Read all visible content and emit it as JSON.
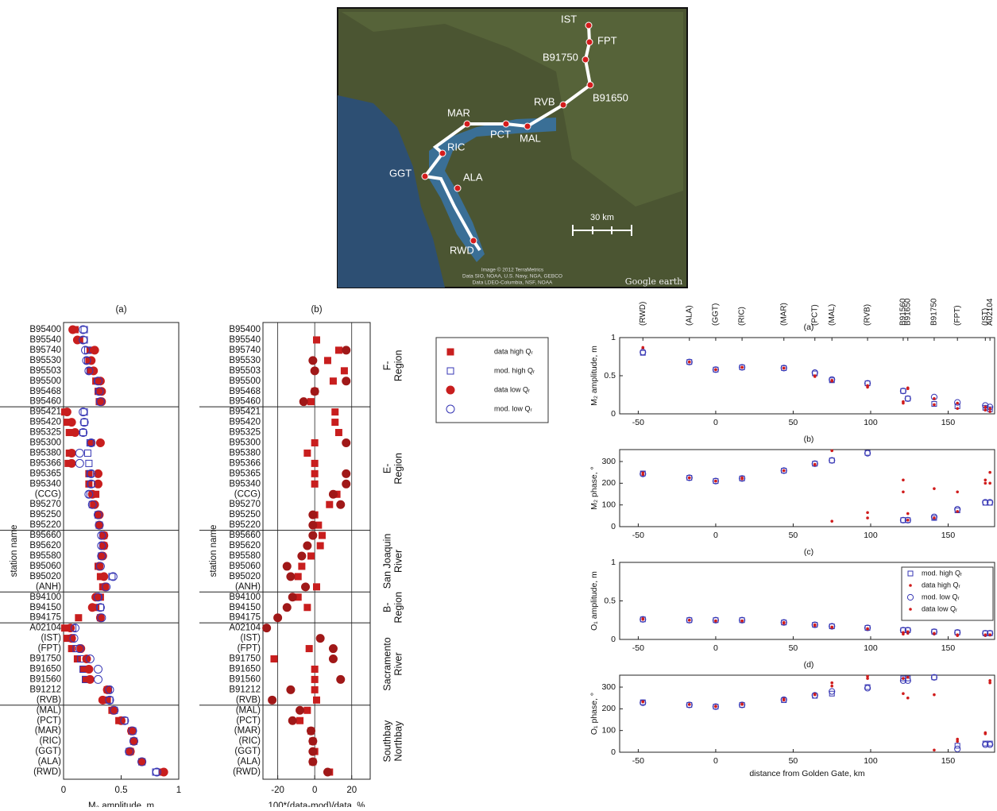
{
  "map": {
    "stations": [
      "IST",
      "FPT",
      "B91750",
      "B91650",
      "RVB",
      "MAR",
      "PCT",
      "MAL",
      "RIC",
      "GGT",
      "ALA",
      "RWD"
    ],
    "scale_label": "30 km",
    "attribution": [
      "Image © 2012 TerraMetrics",
      "Data SIO, NOAA, U.S. Navy, NGA, GEBCO",
      "Data LDEO-Columbia, NSF, NOAA"
    ],
    "logo": "Google earth"
  },
  "chart_data": [
    {
      "type": "dot",
      "title": "(a)",
      "xlabel": "M₂ amplitude, m",
      "ylabel": "station name",
      "categories": [
        "B95400",
        "B95540",
        "B95740",
        "B95530",
        "B95503",
        "B95500",
        "B95468",
        "B95460",
        "B95421",
        "B95420",
        "B95325",
        "B95300",
        "B95380",
        "B95366",
        "B95365",
        "B95340",
        "(CCG)",
        "B95270",
        "B95250",
        "B95220",
        "B95660",
        "B95620",
        "B95580",
        "B95060",
        "B95020",
        "(ANH)",
        "B94100",
        "B94150",
        "B94175",
        "A02104",
        "(IST)",
        "(FPT)",
        "B91750",
        "B91650",
        "B91560",
        "B91212",
        "(RVB)",
        "(MAL)",
        "(PCT)",
        "(MAR)",
        "(RIC)",
        "(GGT)",
        "(ALA)",
        "(RWD)"
      ],
      "xlim": [
        0,
        1
      ],
      "xticks": [
        0,
        0.5,
        1
      ],
      "series": [
        {
          "name": "data high Qᵣ",
          "marker": "square",
          "filled": true,
          "color": "#c81e1e",
          "values": [
            0.1,
            0.14,
            0.23,
            0.22,
            0.23,
            0.28,
            0.3,
            0.31,
            0.01,
            0.03,
            0.05,
            0.24,
            0.05,
            0.04,
            0.22,
            0.22,
            0.28,
            0.26,
            0.3,
            0.31,
            0.35,
            0.35,
            0.33,
            0.3,
            0.32,
            0.34,
            0.32,
            0.28,
            0.13,
            0.01,
            0.03,
            0.07,
            0.12,
            0.17,
            0.19,
            0.38,
            0.38,
            0.42,
            0.48,
            0.59,
            0.61,
            0.58,
            0.68,
            0.86
          ]
        },
        {
          "name": "mod. high Qᵣ",
          "marker": "square",
          "filled": false,
          "color": "#3636b4",
          "values": [
            0.18,
            0.18,
            0.21,
            0.21,
            0.23,
            0.3,
            0.31,
            0.32,
            0.18,
            0.18,
            0.17,
            0.23,
            0.21,
            0.22,
            0.23,
            0.24,
            0.23,
            0.25,
            0.3,
            0.31,
            0.34,
            0.34,
            0.33,
            0.31,
            0.42,
            0.36,
            0.3,
            0.32,
            0.32,
            0.08,
            0.07,
            0.11,
            0.15,
            0.17,
            0.19,
            0.39,
            0.4,
            0.44,
            0.53,
            0.6,
            0.61,
            0.57,
            0.68,
            0.8
          ]
        },
        {
          "name": "data low Qᵣ",
          "marker": "circle",
          "filled": true,
          "color": "#c81e1e",
          "values": [
            0.08,
            0.12,
            0.27,
            0.24,
            0.26,
            0.32,
            0.33,
            0.33,
            0.03,
            0.07,
            0.1,
            0.32,
            0.07,
            0.07,
            0.3,
            0.3,
            0.25,
            0.27,
            0.31,
            0.31,
            0.35,
            0.35,
            0.34,
            0.31,
            0.35,
            0.36,
            0.28,
            0.25,
            0.32,
            0.06,
            0.07,
            0.15,
            0.2,
            0.22,
            0.23,
            0.38,
            0.34,
            0.43,
            0.5,
            0.59,
            0.61,
            0.58,
            0.68,
            0.87
          ]
        },
        {
          "name": "mod. low Qᵣ",
          "marker": "circle",
          "filled": false,
          "color": "#3636b4",
          "values": [
            0.17,
            0.17,
            0.19,
            0.2,
            0.22,
            0.3,
            0.31,
            0.32,
            0.17,
            0.18,
            0.17,
            0.24,
            0.14,
            0.14,
            0.24,
            0.24,
            0.22,
            0.25,
            0.3,
            0.31,
            0.33,
            0.33,
            0.33,
            0.32,
            0.43,
            0.37,
            0.3,
            0.32,
            0.33,
            0.1,
            0.09,
            0.14,
            0.23,
            0.3,
            0.3,
            0.4,
            0.4,
            0.44,
            0.53,
            0.6,
            0.61,
            0.57,
            0.68,
            0.81
          ]
        }
      ]
    },
    {
      "type": "dot",
      "title": "(b)",
      "xlabel": "100*(data-mod)/data, %",
      "ylabel": "station name",
      "groups": [
        {
          "label": [
            "F-",
            "Region"
          ],
          "categories": [
            "B95400",
            "B95540",
            "B95740",
            "B95530",
            "B95503",
            "B95500",
            "B95468",
            "B95460"
          ]
        },
        {
          "label": [
            "E-",
            "Region"
          ],
          "categories": [
            "B95421",
            "B95420",
            "B95325",
            "B95300",
            "B95380",
            "B95366",
            "B95365",
            "B95340",
            "(CCG)",
            "B95270",
            "B95250",
            "B95220"
          ]
        },
        {
          "label": [
            "San Joaquin",
            "River"
          ],
          "categories": [
            "B95660",
            "B95620",
            "B95580",
            "B95060",
            "B95020",
            "(ANH)"
          ]
        },
        {
          "label": [
            "B-",
            "Region"
          ],
          "categories": [
            "B94100",
            "B94150",
            "B94175"
          ]
        },
        {
          "label": [
            "Sacramento",
            "River"
          ],
          "categories": [
            "A02104",
            "(IST)",
            "(FPT)",
            "B91750",
            "B91650",
            "B91560",
            "B91212",
            "(RVB)"
          ]
        },
        {
          "label": [
            "Southbay",
            "Northbay"
          ],
          "categories": [
            "(MAL)",
            "(PCT)",
            "(MAR)",
            "(RIC)",
            "(GGT)",
            "(ALA)",
            "(RWD)"
          ]
        }
      ],
      "xlim": [
        -28,
        30
      ],
      "xticks": [
        -20,
        0,
        20
      ],
      "grid": true,
      "series": [
        {
          "marker": "square",
          "filled": true,
          "color": "#c81e1e",
          "values": [
            null,
            1,
            13,
            7,
            16,
            10,
            0,
            -2,
            11,
            11,
            13,
            0,
            -4,
            0,
            0,
            0,
            12,
            8,
            0,
            2,
            4,
            3,
            -2,
            -7,
            -9,
            1,
            -9,
            -4,
            null,
            null,
            null,
            -3,
            -22,
            0,
            0,
            0,
            1,
            -4,
            -8,
            -2,
            -1,
            0,
            -1,
            8
          ]
        },
        {
          "marker": "circle",
          "filled": true,
          "color": "#a01818",
          "values": [
            null,
            null,
            17,
            -1,
            0,
            17,
            0,
            -6,
            null,
            null,
            null,
            17,
            null,
            null,
            17,
            17,
            10,
            14,
            -1,
            -1,
            -1,
            -4,
            -7,
            -15,
            -13,
            -5,
            -12,
            -15,
            -20,
            -26,
            3,
            10,
            10,
            null,
            14,
            -13,
            -23,
            -8,
            -12,
            -2,
            -1,
            -1,
            -1,
            7
          ]
        }
      ]
    },
    {
      "type": "scatter",
      "title": "(a)",
      "ylabel": "M₂ amplitude, m",
      "x": [
        -47,
        -17,
        0,
        17,
        44,
        64,
        75,
        98,
        121,
        124,
        141,
        156,
        174,
        177
      ],
      "xlim": [
        -62,
        180
      ],
      "xticks": [
        -50,
        0,
        50,
        100,
        150
      ],
      "ylim": [
        0,
        1
      ],
      "yticks": [
        0,
        0.5,
        1
      ],
      "x2ticks": [
        {
          "value": -47,
          "label": "(RWD)"
        },
        {
          "value": -17,
          "label": "(ALA)"
        },
        {
          "value": 0,
          "label": "(GGT)"
        },
        {
          "value": 17,
          "label": "(RIC)"
        },
        {
          "value": 44,
          "label": "(MAR)"
        },
        {
          "value": 64,
          "label": "(PCT)"
        },
        {
          "value": 75,
          "label": "(MAL)"
        },
        {
          "value": 98,
          "label": "(RVB)"
        },
        {
          "value": 121,
          "label": "B91560"
        },
        {
          "value": 124,
          "label": "B91650"
        },
        {
          "value": 141,
          "label": "B91750"
        },
        {
          "value": 156,
          "label": "(FPT)"
        },
        {
          "value": 174,
          "label": "(IST)"
        },
        {
          "value": 177,
          "label": "A02104"
        }
      ],
      "series": [
        {
          "marker": "square",
          "filled": false,
          "color": "#3636b4",
          "values": [
            0.8,
            0.68,
            0.58,
            0.61,
            0.6,
            0.53,
            0.44,
            0.4,
            0.3,
            0.2,
            0.13,
            0.1,
            0.08,
            0.06
          ]
        },
        {
          "marker": "dot",
          "filled": true,
          "color": "#d01c1c",
          "values": [
            0.86,
            0.68,
            0.58,
            0.61,
            0.6,
            0.49,
            0.44,
            0.35,
            0.16,
            0.34,
            0.12,
            0.07,
            0.05,
            0.03
          ]
        },
        {
          "marker": "circle",
          "filled": false,
          "color": "#3636b4",
          "values": [
            0.81,
            0.68,
            0.58,
            0.61,
            0.6,
            0.54,
            0.45,
            0.4,
            0.3,
            0.2,
            0.22,
            0.15,
            0.11,
            0.09
          ]
        },
        {
          "marker": "dot",
          "filled": true,
          "color": "#d01c1c",
          "values": [
            0.87,
            0.68,
            0.58,
            0.61,
            0.6,
            0.5,
            0.43,
            0.37,
            0.14,
            0.33,
            0.2,
            0.14,
            0.09,
            0.07
          ]
        }
      ]
    },
    {
      "type": "scatter",
      "title": "(b)",
      "ylabel": "M₂ phase, °",
      "x": [
        -47,
        -17,
        0,
        17,
        44,
        64,
        75,
        98,
        121,
        124,
        141,
        156,
        174,
        177
      ],
      "xlim": [
        -62,
        180
      ],
      "xticks": [
        -50,
        0,
        50,
        100,
        150
      ],
      "ylim": [
        0,
        355
      ],
      "yticks": [
        0,
        100,
        200,
        300
      ],
      "series": [
        {
          "marker": "square",
          "filled": false,
          "color": "#3636b4",
          "values": [
            245,
            225,
            210,
            222,
            258,
            290,
            305,
            340,
            30,
            30,
            40,
            75,
            110,
            110
          ]
        },
        {
          "marker": "dot",
          "filled": true,
          "color": "#d01c1c",
          "values": [
            250,
            225,
            210,
            225,
            258,
            287,
            350,
            65,
            215,
            60,
            175,
            160,
            200,
            250
          ]
        },
        {
          "marker": "circle",
          "filled": false,
          "color": "#3636b4",
          "values": [
            243,
            225,
            210,
            222,
            258,
            290,
            305,
            338,
            30,
            30,
            45,
            80,
            112,
            112
          ]
        },
        {
          "marker": "dot",
          "filled": true,
          "color": "#d01c1c",
          "values": [
            240,
            225,
            210,
            220,
            258,
            285,
            25,
            40,
            160,
            30,
            40,
            70,
            215,
            200
          ]
        }
      ]
    },
    {
      "type": "scatter",
      "title": "(c)",
      "ylabel": "O₁ amplitude, m",
      "legend": "upper right",
      "x": [
        -47,
        -17,
        0,
        17,
        44,
        64,
        75,
        98,
        121,
        124,
        141,
        156,
        174,
        177
      ],
      "xlim": [
        -62,
        180
      ],
      "xticks": [
        -50,
        0,
        50,
        100,
        150
      ],
      "ylim": [
        0,
        1
      ],
      "yticks": [
        0,
        0.5,
        1
      ],
      "series": [
        {
          "name": "mod. high Qᵣ",
          "marker": "square",
          "filled": false,
          "color": "#3636b4",
          "values": [
            0.26,
            0.25,
            0.25,
            0.25,
            0.22,
            0.19,
            0.17,
            0.15,
            0.12,
            0.12,
            0.1,
            0.09,
            0.08,
            0.08
          ]
        },
        {
          "name": "data high Qᵣ",
          "marker": "dot",
          "filled": true,
          "color": "#d01c1c",
          "values": [
            0.26,
            0.25,
            0.24,
            0.24,
            0.21,
            0.18,
            0.15,
            0.13,
            0.07,
            0.08,
            0.07,
            0.05,
            0.05,
            0.06
          ]
        },
        {
          "name": "mod. low Qᵣ",
          "marker": "circle",
          "filled": false,
          "color": "#3636b4",
          "values": [
            0.26,
            0.25,
            0.25,
            0.25,
            0.22,
            0.19,
            0.17,
            0.15,
            0.12,
            0.12,
            0.1,
            0.09,
            0.08,
            0.08
          ]
        },
        {
          "name": "data low Qᵣ",
          "marker": "dot",
          "filled": true,
          "color": "#d01c1c",
          "values": [
            0.27,
            0.25,
            0.24,
            0.24,
            0.22,
            0.19,
            0.16,
            0.14,
            0.09,
            0.1,
            0.08,
            0.06,
            0.06,
            0.06
          ]
        }
      ]
    },
    {
      "type": "scatter",
      "title": "(d)",
      "ylabel": "O₁ phase, °",
      "xlabel": "distance from Golden Gate, km",
      "x": [
        -47,
        -17,
        0,
        17,
        44,
        64,
        75,
        98,
        121,
        124,
        141,
        156,
        174,
        177
      ],
      "xlim": [
        -62,
        180
      ],
      "xticks": [
        -50,
        0,
        50,
        100,
        150
      ],
      "ylim": [
        0,
        355
      ],
      "yticks": [
        0,
        100,
        200,
        300
      ],
      "series": [
        {
          "marker": "square",
          "filled": false,
          "color": "#3636b4",
          "values": [
            230,
            218,
            210,
            218,
            240,
            260,
            270,
            300,
            340,
            340,
            345,
            30,
            40,
            40
          ]
        },
        {
          "marker": "dot",
          "filled": true,
          "color": "#d01c1c",
          "values": [
            235,
            220,
            210,
            220,
            240,
            270,
            320,
            350,
            270,
            250,
            265,
            60,
            90,
            320
          ]
        },
        {
          "marker": "circle",
          "filled": false,
          "color": "#3636b4",
          "values": [
            228,
            218,
            210,
            218,
            242,
            262,
            280,
            295,
            330,
            330,
            345,
            15,
            35,
            35
          ]
        },
        {
          "marker": "dot",
          "filled": true,
          "color": "#d01c1c",
          "values": [
            232,
            220,
            212,
            222,
            245,
            265,
            305,
            340,
            340,
            345,
            10,
            50,
            85,
            330
          ]
        }
      ]
    }
  ]
}
